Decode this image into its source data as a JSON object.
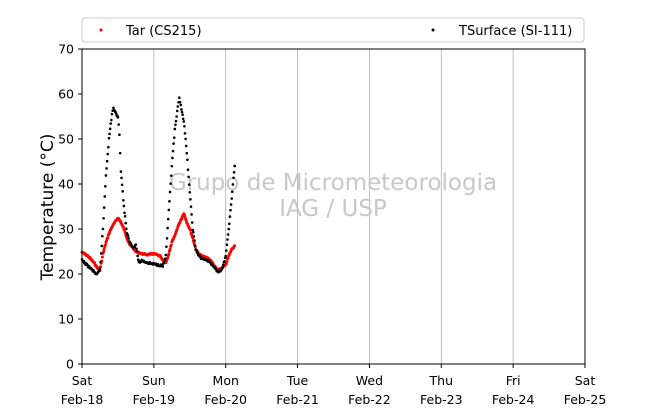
{
  "chart_data": {
    "type": "scatter",
    "title": "",
    "ylabel": "Temperature (°C)",
    "xlabel": "",
    "ylim": [
      0,
      70
    ],
    "yticks": [
      0,
      10,
      20,
      30,
      40,
      50,
      60,
      70
    ],
    "xlim": [
      "2017-02-18T00:00",
      "2017-02-25T00:00"
    ],
    "xticks": [
      {
        "date": "2017-02-18",
        "day": "Sat",
        "label": "Feb-18"
      },
      {
        "date": "2017-02-19",
        "day": "Sun",
        "label": "Feb-19"
      },
      {
        "date": "2017-02-20",
        "day": "Mon",
        "label": "Feb-20"
      },
      {
        "date": "2017-02-21",
        "day": "Tue",
        "label": "Feb-21"
      },
      {
        "date": "2017-02-22",
        "day": "Wed",
        "label": "Feb-22"
      },
      {
        "date": "2017-02-23",
        "day": "Thu",
        "label": "Feb-23"
      },
      {
        "date": "2017-02-24",
        "day": "Fri",
        "label": "Feb-24"
      },
      {
        "date": "2017-02-25",
        "day": "Sat",
        "label": "Feb-25"
      }
    ],
    "grid": "vertical",
    "legend_position": "top",
    "watermark": [
      "Grupo de Micrometeorologia",
      "IAG / USP"
    ],
    "series": [
      {
        "name": "Tar (CS215)",
        "color": "#ff0000",
        "points": [
          [
            "2017-02-18T00:00",
            24.8
          ],
          [
            "2017-02-18T02:00",
            24.0
          ],
          [
            "2017-02-18T04:00",
            22.5
          ],
          [
            "2017-02-18T05:00",
            21.5
          ],
          [
            "2017-02-18T06:00",
            20.8
          ],
          [
            "2017-02-18T07:00",
            24.5
          ],
          [
            "2017-02-18T08:00",
            27.0
          ],
          [
            "2017-02-18T09:00",
            29.0
          ],
          [
            "2017-02-18T10:00",
            30.5
          ],
          [
            "2017-02-18T11:00",
            31.5
          ],
          [
            "2017-02-18T12:00",
            32.5
          ],
          [
            "2017-02-18T13:00",
            31.5
          ],
          [
            "2017-02-18T14:00",
            30.0
          ],
          [
            "2017-02-18T15:00",
            28.0
          ],
          [
            "2017-02-18T16:00",
            26.5
          ],
          [
            "2017-02-18T17:00",
            25.8
          ],
          [
            "2017-02-18T18:00",
            25.0
          ],
          [
            "2017-02-18T20:00",
            24.5
          ],
          [
            "2017-02-18T22:00",
            24.3
          ],
          [
            "2017-02-19T00:00",
            24.5
          ],
          [
            "2017-02-19T02:00",
            24.0
          ],
          [
            "2017-02-19T03:00",
            23.0
          ],
          [
            "2017-02-19T04:00",
            22.5
          ],
          [
            "2017-02-19T05:00",
            24.5
          ],
          [
            "2017-02-19T06:00",
            27.0
          ],
          [
            "2017-02-19T07:00",
            28.5
          ],
          [
            "2017-02-19T08:00",
            30.5
          ],
          [
            "2017-02-19T09:00",
            32.0
          ],
          [
            "2017-02-19T10:00",
            33.5
          ],
          [
            "2017-02-19T11:00",
            31.5
          ],
          [
            "2017-02-19T12:00",
            30.0
          ],
          [
            "2017-02-19T13:00",
            28.0
          ],
          [
            "2017-02-19T14:00",
            25.5
          ],
          [
            "2017-02-19T15:00",
            24.5
          ],
          [
            "2017-02-19T16:00",
            24.0
          ],
          [
            "2017-02-19T18:00",
            23.5
          ],
          [
            "2017-02-19T19:00",
            23.0
          ],
          [
            "2017-02-19T20:00",
            22.0
          ],
          [
            "2017-02-19T21:00",
            21.0
          ],
          [
            "2017-02-19T22:00",
            21.0
          ],
          [
            "2017-02-20T00:00",
            22.0
          ],
          [
            "2017-02-20T01:00",
            24.0
          ],
          [
            "2017-02-20T02:00",
            25.5
          ],
          [
            "2017-02-20T03:00",
            26.3
          ]
        ]
      },
      {
        "name": "TSurface (SI-111)",
        "color": "#000000",
        "points": [
          [
            "2017-02-18T00:00",
            23.0
          ],
          [
            "2017-02-18T02:00",
            21.8
          ],
          [
            "2017-02-18T04:00",
            20.5
          ],
          [
            "2017-02-18T05:00",
            19.8
          ],
          [
            "2017-02-18T06:00",
            21.0
          ],
          [
            "2017-02-18T07:00",
            30.0
          ],
          [
            "2017-02-18T08:00",
            42.0
          ],
          [
            "2017-02-18T09:00",
            50.0
          ],
          [
            "2017-02-18T10:00",
            55.5
          ],
          [
            "2017-02-18T10:30",
            57.0
          ],
          [
            "2017-02-18T11:00",
            56.0
          ],
          [
            "2017-02-18T12:00",
            55.0
          ],
          [
            "2017-02-18T12:30",
            51.0
          ],
          [
            "2017-02-18T13:00",
            43.0
          ],
          [
            "2017-02-18T14:00",
            35.0
          ],
          [
            "2017-02-18T15:00",
            29.0
          ],
          [
            "2017-02-18T16:00",
            27.0
          ],
          [
            "2017-02-18T17:00",
            26.0
          ],
          [
            "2017-02-18T18:00",
            26.5
          ],
          [
            "2017-02-18T19:00",
            22.5
          ],
          [
            "2017-02-18T20:00",
            23.0
          ],
          [
            "2017-02-18T22:00",
            22.5
          ],
          [
            "2017-02-19T00:00",
            22.2
          ],
          [
            "2017-02-19T02:00",
            22.0
          ],
          [
            "2017-02-19T03:00",
            21.8
          ],
          [
            "2017-02-19T04:00",
            24.0
          ],
          [
            "2017-02-19T05:00",
            34.0
          ],
          [
            "2017-02-19T06:00",
            44.0
          ],
          [
            "2017-02-19T07:00",
            52.0
          ],
          [
            "2017-02-19T08:00",
            57.0
          ],
          [
            "2017-02-19T08:30",
            59.0
          ],
          [
            "2017-02-19T09:00",
            57.5
          ],
          [
            "2017-02-19T10:00",
            54.0
          ],
          [
            "2017-02-19T11:00",
            47.0
          ],
          [
            "2017-02-19T12:00",
            38.0
          ],
          [
            "2017-02-19T13:00",
            30.0
          ],
          [
            "2017-02-19T14:00",
            25.5
          ],
          [
            "2017-02-19T15:00",
            24.0
          ],
          [
            "2017-02-19T16:00",
            23.5
          ],
          [
            "2017-02-19T18:00",
            23.0
          ],
          [
            "2017-02-19T19:00",
            22.5
          ],
          [
            "2017-02-19T20:00",
            21.5
          ],
          [
            "2017-02-19T21:00",
            20.8
          ],
          [
            "2017-02-19T22:00",
            20.5
          ],
          [
            "2017-02-19T23:00",
            21.5
          ],
          [
            "2017-02-20T00:00",
            24.0
          ],
          [
            "2017-02-20T01:00",
            30.0
          ],
          [
            "2017-02-20T02:00",
            37.0
          ],
          [
            "2017-02-20T03:00",
            44.0
          ]
        ]
      }
    ]
  }
}
